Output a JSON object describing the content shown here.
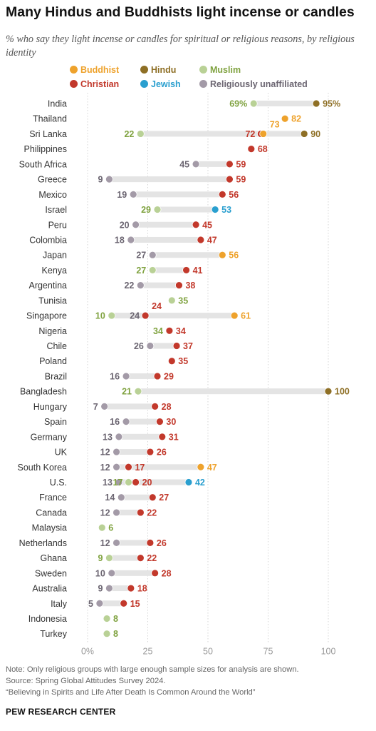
{
  "title": "Many Hindus and Buddhists light incense or candles",
  "subtitle": "% who say they light incense or candles for spiritual or religious reasons, by religious identity",
  "notes": {
    "note": "Note: Only religious groups with large enough sample sizes for analysis are shown.",
    "source": "Source: Spring Global Attitudes Survey 2024.",
    "report": "“Believing in Spirits and Life After Death Is Common Around the World”"
  },
  "brand": "PEW RESEARCH CENTER",
  "colors": {
    "Buddhist": "#eea22c",
    "Hindu": "#8e6f25",
    "Muslim": "#b9d196",
    "Christian": "#c2382b",
    "Jewish": "#2a9fcf",
    "Religiously unaffiliated": "#a39aa7"
  },
  "label_colors": {
    "Buddhist": "#eea22c",
    "Hindu": "#8e6f25",
    "Muslim": "#7fa23f",
    "Christian": "#c2382b",
    "Jewish": "#2a9fcf",
    "Religiously unaffiliated": "#6b6571"
  },
  "chart_data": {
    "type": "dot",
    "xlim": [
      0,
      100
    ],
    "x_ticks": [
      "0%",
      "25",
      "50",
      "75",
      "100"
    ],
    "legend": [
      "Buddhist",
      "Hindu",
      "Muslim",
      "Christian",
      "Jewish",
      "Religiously unaffiliated"
    ],
    "legend_placement": "top",
    "grid": true,
    "rows": [
      {
        "country": "India",
        "points": [
          {
            "group": "Muslim",
            "value": 69,
            "label": "69%"
          },
          {
            "group": "Hindu",
            "value": 95,
            "label": "95%"
          }
        ]
      },
      {
        "country": "Thailand",
        "points": [
          {
            "group": "Buddhist",
            "value": 82,
            "label": "82"
          }
        ]
      },
      {
        "country": "Sri Lanka",
        "points": [
          {
            "group": "Muslim",
            "value": 22,
            "label": "22"
          },
          {
            "group": "Christian",
            "value": 72,
            "label": "72"
          },
          {
            "group": "Buddhist",
            "value": 73,
            "label": "73"
          },
          {
            "group": "Hindu",
            "value": 90,
            "label": "90"
          }
        ]
      },
      {
        "country": "Philippines",
        "points": [
          {
            "group": "Christian",
            "value": 68,
            "label": "68"
          }
        ]
      },
      {
        "country": "South Africa",
        "points": [
          {
            "group": "Religiously unaffiliated",
            "value": 45,
            "label": "45"
          },
          {
            "group": "Christian",
            "value": 59,
            "label": "59"
          }
        ]
      },
      {
        "country": "Greece",
        "points": [
          {
            "group": "Religiously unaffiliated",
            "value": 9,
            "label": "9"
          },
          {
            "group": "Christian",
            "value": 59,
            "label": "59"
          }
        ]
      },
      {
        "country": "Mexico",
        "points": [
          {
            "group": "Religiously unaffiliated",
            "value": 19,
            "label": "19"
          },
          {
            "group": "Christian",
            "value": 56,
            "label": "56"
          }
        ]
      },
      {
        "country": "Israel",
        "points": [
          {
            "group": "Muslim",
            "value": 29,
            "label": "29"
          },
          {
            "group": "Jewish",
            "value": 53,
            "label": "53"
          }
        ]
      },
      {
        "country": "Peru",
        "points": [
          {
            "group": "Religiously unaffiliated",
            "value": 20,
            "label": "20"
          },
          {
            "group": "Christian",
            "value": 45,
            "label": "45"
          }
        ]
      },
      {
        "country": "Colombia",
        "points": [
          {
            "group": "Religiously unaffiliated",
            "value": 18,
            "label": "18"
          },
          {
            "group": "Christian",
            "value": 47,
            "label": "47"
          }
        ]
      },
      {
        "country": "Japan",
        "points": [
          {
            "group": "Religiously unaffiliated",
            "value": 27,
            "label": "27"
          },
          {
            "group": "Buddhist",
            "value": 56,
            "label": "56"
          }
        ]
      },
      {
        "country": "Kenya",
        "points": [
          {
            "group": "Muslim",
            "value": 27,
            "label": "27"
          },
          {
            "group": "Christian",
            "value": 41,
            "label": "41"
          }
        ]
      },
      {
        "country": "Argentina",
        "points": [
          {
            "group": "Religiously unaffiliated",
            "value": 22,
            "label": "22"
          },
          {
            "group": "Christian",
            "value": 38,
            "label": "38"
          }
        ]
      },
      {
        "country": "Tunisia",
        "points": [
          {
            "group": "Muslim",
            "value": 35,
            "label": "35"
          }
        ]
      },
      {
        "country": "Singapore",
        "points": [
          {
            "group": "Muslim",
            "value": 10,
            "label": "10"
          },
          {
            "group": "Religiously unaffiliated",
            "value": 24,
            "label": "24"
          },
          {
            "group": "Christian",
            "value": 24,
            "label": "24"
          },
          {
            "group": "Buddhist",
            "value": 61,
            "label": "61"
          }
        ]
      },
      {
        "country": "Nigeria",
        "points": [
          {
            "group": "Muslim",
            "value": 34,
            "label": "34"
          },
          {
            "group": "Christian",
            "value": 34,
            "label": "34"
          }
        ]
      },
      {
        "country": "Chile",
        "points": [
          {
            "group": "Religiously unaffiliated",
            "value": 26,
            "label": "26"
          },
          {
            "group": "Christian",
            "value": 37,
            "label": "37"
          }
        ]
      },
      {
        "country": "Poland",
        "points": [
          {
            "group": "Christian",
            "value": 35,
            "label": "35"
          }
        ]
      },
      {
        "country": "Brazil",
        "points": [
          {
            "group": "Religiously unaffiliated",
            "value": 16,
            "label": "16"
          },
          {
            "group": "Christian",
            "value": 29,
            "label": "29"
          }
        ]
      },
      {
        "country": "Bangladesh",
        "points": [
          {
            "group": "Muslim",
            "value": 21,
            "label": "21"
          },
          {
            "group": "Hindu",
            "value": 100,
            "label": "100"
          }
        ]
      },
      {
        "country": "Hungary",
        "points": [
          {
            "group": "Religiously unaffiliated",
            "value": 7,
            "label": "7"
          },
          {
            "group": "Christian",
            "value": 28,
            "label": "28"
          }
        ]
      },
      {
        "country": "Spain",
        "points": [
          {
            "group": "Religiously unaffiliated",
            "value": 16,
            "label": "16"
          },
          {
            "group": "Christian",
            "value": 30,
            "label": "30"
          }
        ]
      },
      {
        "country": "Germany",
        "points": [
          {
            "group": "Religiously unaffiliated",
            "value": 13,
            "label": "13"
          },
          {
            "group": "Christian",
            "value": 31,
            "label": "31"
          }
        ]
      },
      {
        "country": "UK",
        "points": [
          {
            "group": "Religiously unaffiliated",
            "value": 12,
            "label": "12"
          },
          {
            "group": "Christian",
            "value": 26,
            "label": "26"
          }
        ]
      },
      {
        "country": "South Korea",
        "points": [
          {
            "group": "Religiously unaffiliated",
            "value": 12,
            "label": "12"
          },
          {
            "group": "Christian",
            "value": 17,
            "label": "17"
          },
          {
            "group": "Buddhist",
            "value": 47,
            "label": "47"
          }
        ]
      },
      {
        "country": "U.S.",
        "points": [
          {
            "group": "Religiously unaffiliated",
            "value": 13,
            "label": "13"
          },
          {
            "group": "Muslim",
            "value": 17,
            "label": "17"
          },
          {
            "group": "Christian",
            "value": 20,
            "label": "20"
          },
          {
            "group": "Jewish",
            "value": 42,
            "label": "42"
          }
        ]
      },
      {
        "country": "France",
        "points": [
          {
            "group": "Religiously unaffiliated",
            "value": 14,
            "label": "14"
          },
          {
            "group": "Christian",
            "value": 27,
            "label": "27"
          }
        ]
      },
      {
        "country": "Canada",
        "points": [
          {
            "group": "Religiously unaffiliated",
            "value": 12,
            "label": "12"
          },
          {
            "group": "Christian",
            "value": 22,
            "label": "22"
          }
        ]
      },
      {
        "country": "Malaysia",
        "points": [
          {
            "group": "Muslim",
            "value": 6,
            "label": "6"
          }
        ]
      },
      {
        "country": "Netherlands",
        "points": [
          {
            "group": "Religiously unaffiliated",
            "value": 12,
            "label": "12"
          },
          {
            "group": "Christian",
            "value": 26,
            "label": "26"
          }
        ]
      },
      {
        "country": "Ghana",
        "points": [
          {
            "group": "Muslim",
            "value": 9,
            "label": "9"
          },
          {
            "group": "Christian",
            "value": 22,
            "label": "22"
          }
        ]
      },
      {
        "country": "Sweden",
        "points": [
          {
            "group": "Religiously unaffiliated",
            "value": 10,
            "label": "10"
          },
          {
            "group": "Christian",
            "value": 28,
            "label": "28"
          }
        ]
      },
      {
        "country": "Australia",
        "points": [
          {
            "group": "Religiously unaffiliated",
            "value": 9,
            "label": "9"
          },
          {
            "group": "Christian",
            "value": 18,
            "label": "18"
          }
        ]
      },
      {
        "country": "Italy",
        "points": [
          {
            "group": "Religiously unaffiliated",
            "value": 5,
            "label": "5"
          },
          {
            "group": "Christian",
            "value": 15,
            "label": "15"
          }
        ]
      },
      {
        "country": "Indonesia",
        "points": [
          {
            "group": "Muslim",
            "value": 8,
            "label": "8"
          }
        ]
      },
      {
        "country": "Turkey",
        "points": [
          {
            "group": "Muslim",
            "value": 8,
            "label": "8"
          }
        ]
      }
    ]
  }
}
